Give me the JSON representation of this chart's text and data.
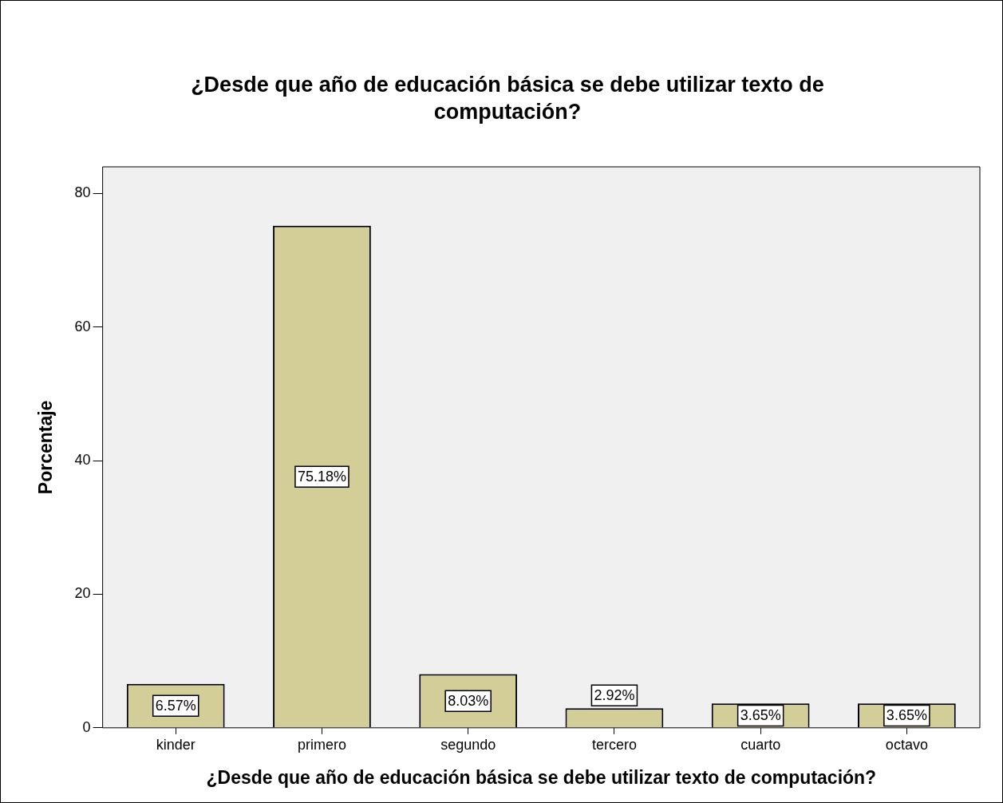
{
  "chart_data": {
    "type": "bar",
    "title": "¿Desde que año de educación básica se debe utilizar texto de computación?",
    "xlabel": "¿Desde que año de educación básica se debe utilizar texto de computación?",
    "ylabel": "Porcentaje",
    "categories": [
      "kinder",
      "primero",
      "segundo",
      "tercero",
      "cuarto",
      "octavo"
    ],
    "values": [
      6.57,
      75.18,
      8.03,
      2.92,
      3.65,
      3.65
    ],
    "value_labels": [
      "6.57%",
      "75.18%",
      "8.03%",
      "2.92%",
      "3.65%",
      "3.65%"
    ],
    "color": "#d3ce97",
    "ylim": [
      0,
      84
    ],
    "yticks": [
      0,
      20,
      40,
      60,
      80
    ],
    "grid": false,
    "legend": false
  }
}
